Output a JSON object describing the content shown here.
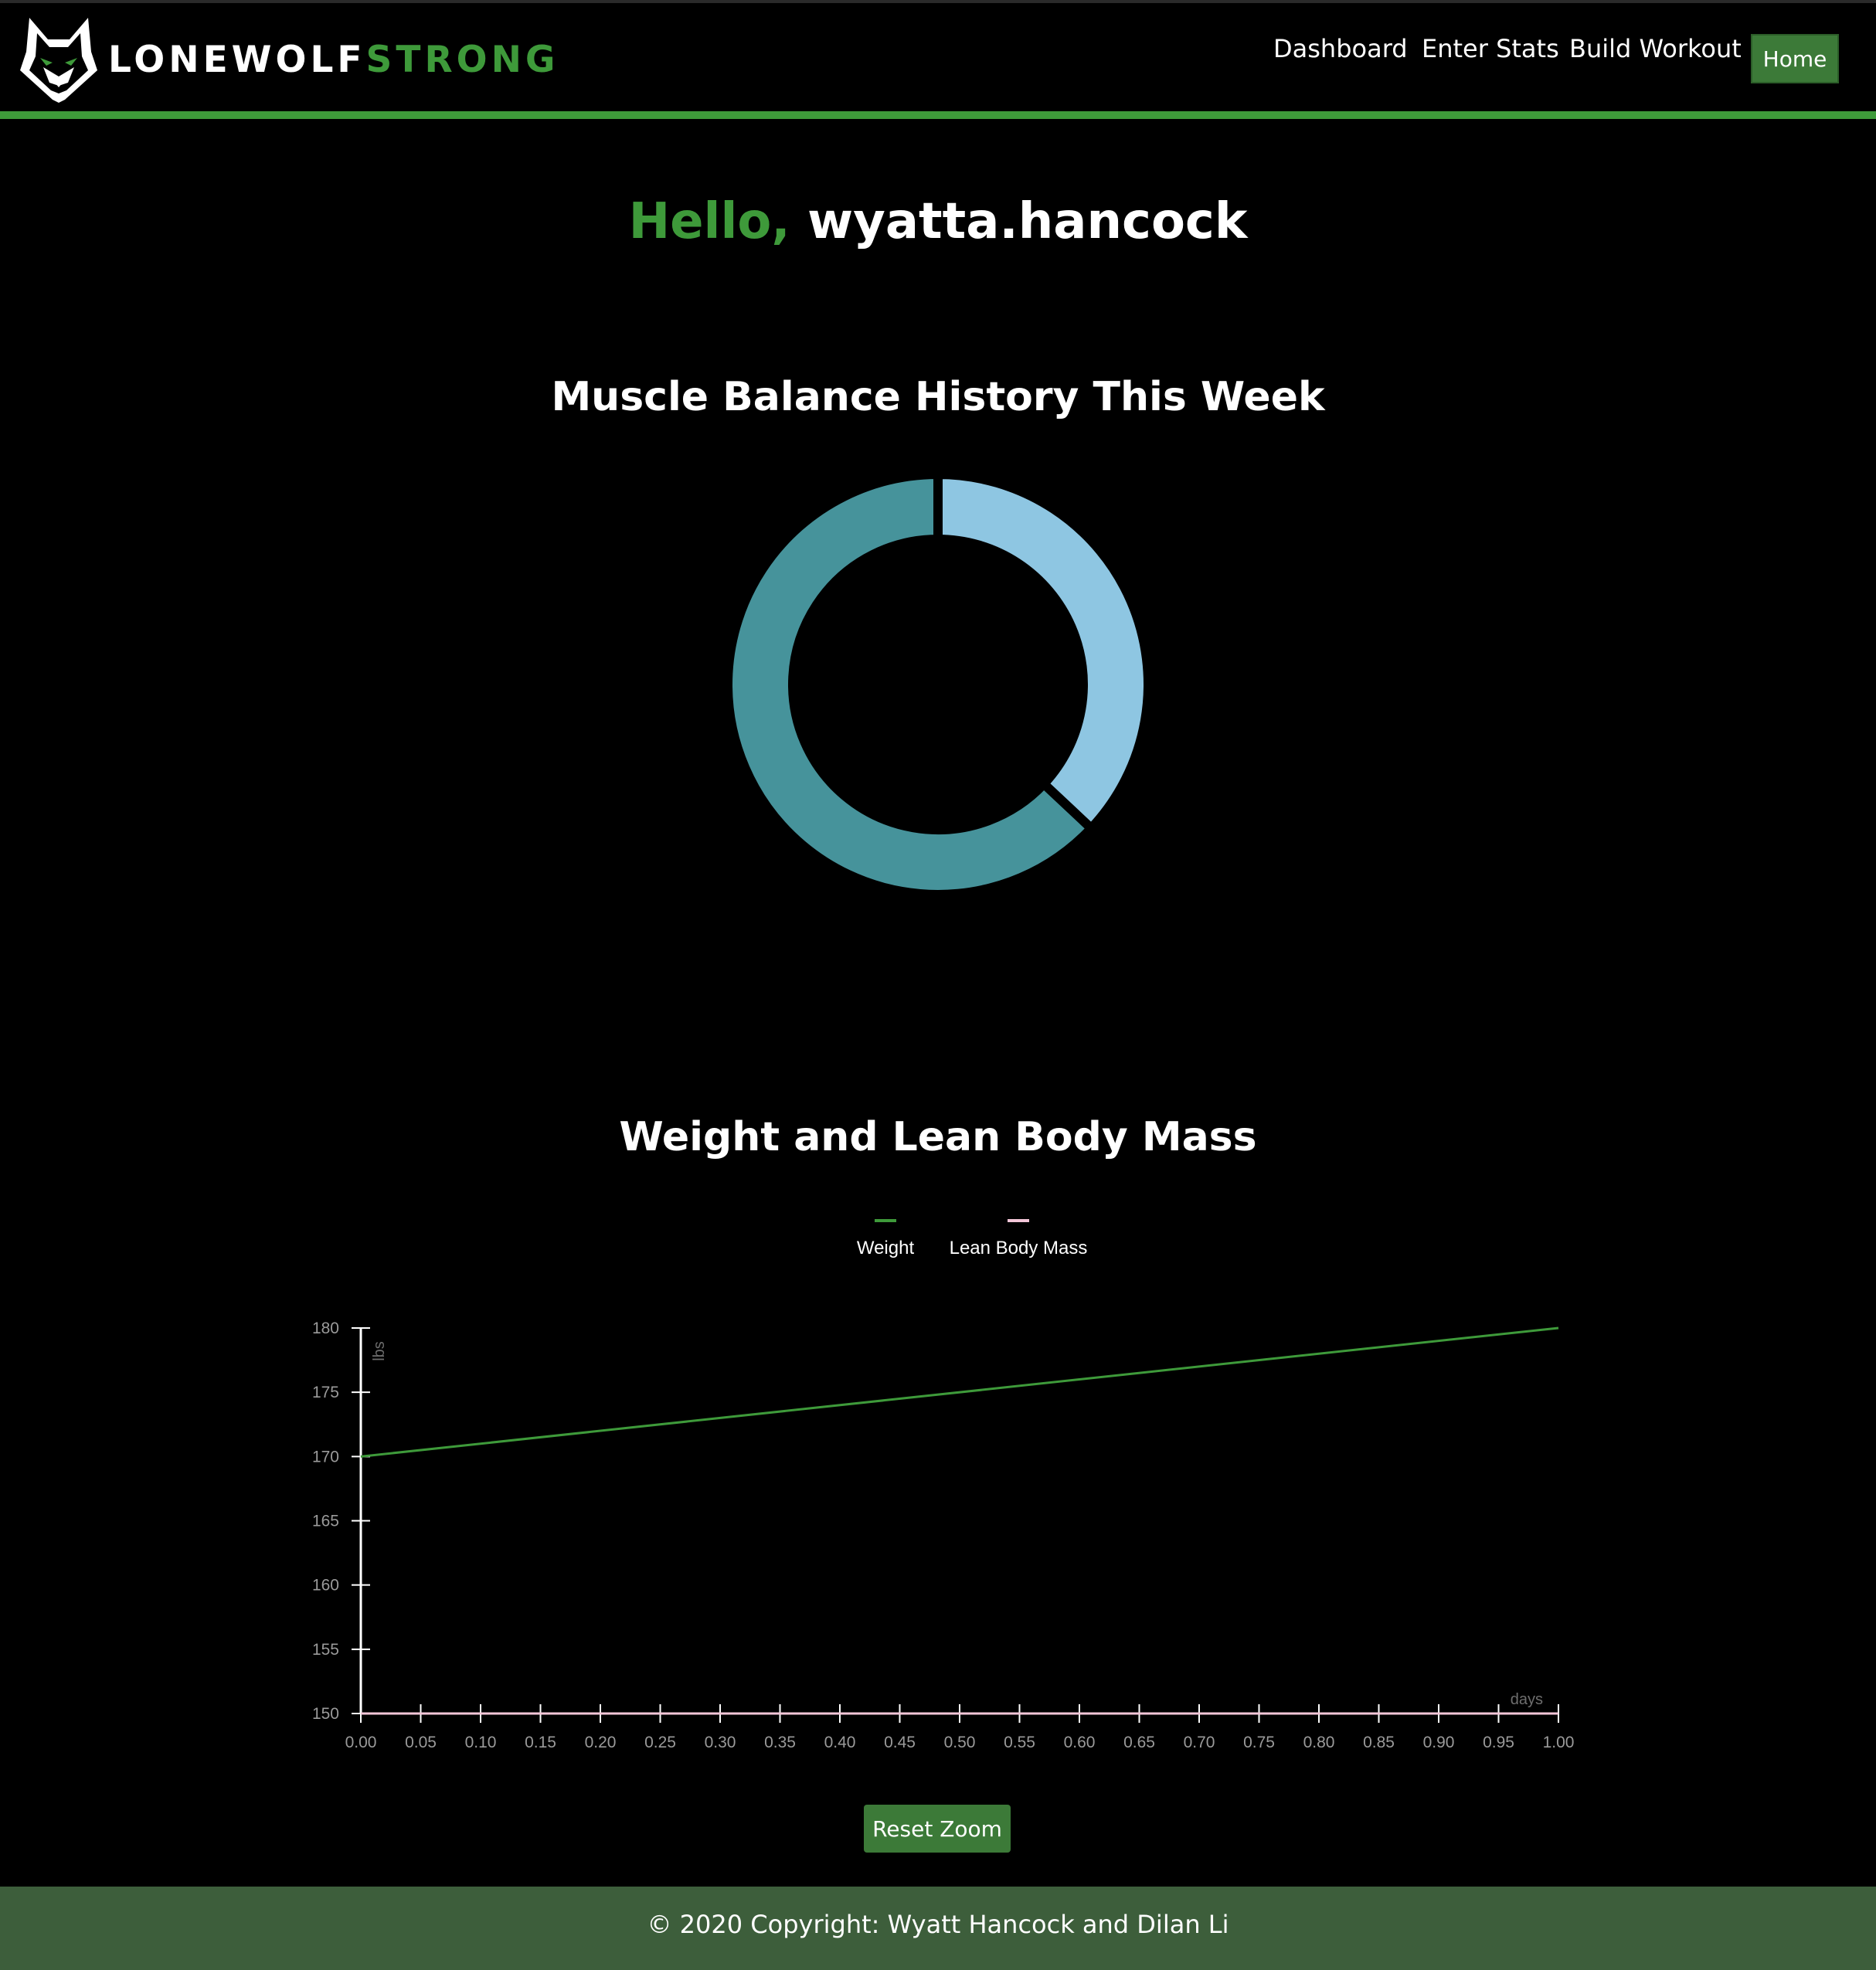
{
  "brand": {
    "name_part1": "LONEWOLF",
    "name_part2": "STRONG",
    "logo_icon": "wolf-head-icon"
  },
  "nav": {
    "links": [
      "Dashboard",
      "Enter Stats",
      "Build Workout"
    ],
    "home_button": "Home"
  },
  "greeting": {
    "hello": "Hello,",
    "username": "wyatta.hancock"
  },
  "sections": {
    "muscle_title": "Muscle Balance History This Week",
    "weight_title": "Weight and Lean Body Mass"
  },
  "reset_zoom_label": "Reset Zoom",
  "footer": {
    "text": "© 2020 Copyright: Wyatt Hancock and Dilan Li"
  },
  "colors": {
    "accent": "#3e9a3a",
    "donut_dark": "#46939b",
    "donut_light": "#8ec6e2",
    "lbm_line": "#f3c6d8"
  },
  "chart_data": [
    {
      "type": "pie",
      "title": "Muscle Balance History This Week",
      "values": [
        37,
        63
      ],
      "colors": [
        "#8ec6e2",
        "#46939b"
      ]
    },
    {
      "type": "line",
      "title": "Weight and Lean Body Mass",
      "xlabel": "days",
      "ylabel": "lbs",
      "xlim": [
        0,
        1
      ],
      "ylim": [
        150,
        180
      ],
      "x_ticks": [
        "0.00",
        "0.05",
        "0.10",
        "0.15",
        "0.20",
        "0.25",
        "0.30",
        "0.35",
        "0.40",
        "0.45",
        "0.50",
        "0.55",
        "0.60",
        "0.65",
        "0.70",
        "0.75",
        "0.80",
        "0.85",
        "0.90",
        "0.95",
        "1.00"
      ],
      "y_ticks": [
        "150",
        "155",
        "160",
        "165",
        "170",
        "175",
        "180"
      ],
      "legend": "top-center",
      "series": [
        {
          "name": "Weight",
          "color": "#3e9a3a",
          "x": [
            0,
            1
          ],
          "y": [
            170,
            180
          ]
        },
        {
          "name": "Lean Body Mass",
          "color": "#f3c6d8",
          "x": [
            0,
            1
          ],
          "y": [
            150,
            150
          ]
        }
      ]
    }
  ]
}
